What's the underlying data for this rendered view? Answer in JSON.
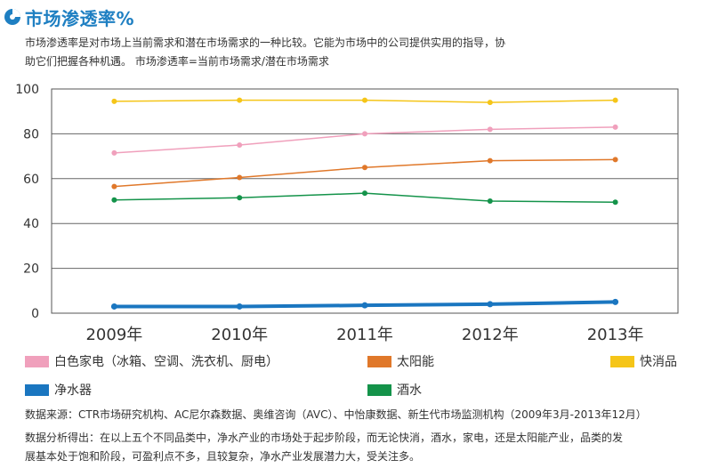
{
  "header": {
    "title": "市场渗透率%",
    "icon": "pie-chart-icon",
    "accent": "#1e7fc2"
  },
  "intro": {
    "line1": "市场渗透率是对市场上当前需求和潜在市场需求的一种比较。它能为市场中的公司提供实用的指导，协",
    "line2": "助它们把握各种机遇。 市场渗透率=当前市场需求/潜在市场需求"
  },
  "chart_data": {
    "type": "line",
    "title": "",
    "xlabel": "",
    "ylabel": "",
    "categories": [
      "2009年",
      "2010年",
      "2011年",
      "2012年",
      "2013年"
    ],
    "ylim": [
      0,
      100
    ],
    "yticks": [
      0,
      20,
      40,
      60,
      80,
      100
    ],
    "grid": true,
    "legend_position": "bottom",
    "series": [
      {
        "name": "快消品",
        "color": "#f5c518",
        "values": [
          94.5,
          95,
          95,
          94,
          95
        ]
      },
      {
        "name": "白色家电（冰箱、空调、洗衣机、厨电）",
        "color": "#f0a0bc",
        "values": [
          71.5,
          75,
          80,
          82,
          83
        ]
      },
      {
        "name": "太阳能",
        "color": "#e0782a",
        "values": [
          56.5,
          60.5,
          65,
          68,
          68.5
        ]
      },
      {
        "name": "酒水",
        "color": "#14934a",
        "values": [
          50.5,
          51.5,
          53.5,
          50,
          49.5
        ]
      },
      {
        "name": "净水器",
        "color": "#1a76c0",
        "values": [
          3,
          3,
          3.5,
          4,
          5
        ]
      }
    ]
  },
  "legend": {
    "items": [
      {
        "label": "白色家电（冰箱、空调、洗衣机、厨电）",
        "color": "#f0a0bc"
      },
      {
        "label": "太阳能",
        "color": "#e0782a"
      },
      {
        "label": "快消品",
        "color": "#f5c518"
      },
      {
        "label": "净水器",
        "color": "#1a76c0"
      },
      {
        "label": "酒水",
        "color": "#14934a"
      }
    ]
  },
  "notes": {
    "source": "数据来源：CTR市场研究机构、AC尼尔森数据、奥维咨询（AVC）、中怡康数据、新生代市场监测机构（2009年3月-2013年12月）",
    "analysis_line1": "数据分析得出：在以上五个不同品类中，净水产业的市场处于起步阶段，而无论快消，酒水，家电，还是太阳能产业，品类的发",
    "analysis_line2": "展基本处于饱和阶段，可盈利点不多，且较复杂，净水产业发展潜力大，受关注多。"
  }
}
